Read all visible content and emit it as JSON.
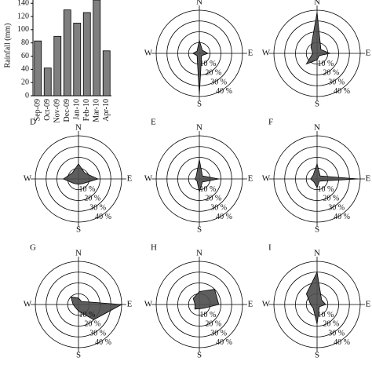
{
  "chart_data": [
    {
      "type": "bar",
      "ylabel": "Rainfall (mm)",
      "categories": [
        "Sep-09",
        "Oct-09",
        "Nov-09",
        "Dec-09",
        "Jan-10",
        "Feb-10",
        "Mar-10",
        "Apr-10"
      ],
      "values": [
        83,
        42,
        90,
        130,
        110,
        126,
        145,
        68
      ],
      "color": "#7f7f7f",
      "ylim": [
        0,
        145
      ],
      "yticks": [
        0,
        20,
        40,
        60,
        80,
        100,
        120,
        140
      ]
    },
    {
      "type": "radar",
      "categories": [
        "N",
        null,
        "E",
        null,
        "S",
        null,
        "W",
        null
      ],
      "values": [
        12,
        4,
        8,
        3,
        38,
        3,
        6,
        3
      ],
      "color": "#4d4d4d",
      "rlim": [
        0,
        40
      ],
      "rticks": [
        {
          "value": 10,
          "label": "10 %"
        },
        {
          "value": 20,
          "label": "20 %"
        },
        {
          "value": 30,
          "label": "30 %"
        },
        {
          "value": 40,
          "label": "40 %"
        }
      ]
    },
    {
      "type": "radar",
      "categories": [
        "N",
        null,
        "E",
        null,
        "S",
        null,
        "W",
        null
      ],
      "values": [
        38,
        5,
        12,
        3,
        6,
        14,
        4,
        8
      ],
      "color": "#4d4d4d",
      "rlim": [
        0,
        40
      ],
      "rticks": [
        {
          "value": 10,
          "label": "10 %"
        },
        {
          "value": 20,
          "label": "20 %"
        },
        {
          "value": 30,
          "label": "30 %"
        },
        {
          "value": 40,
          "label": "40 %"
        }
      ]
    },
    {
      "type": "radar",
      "label": "D",
      "categories": [
        "N",
        null,
        "E",
        null,
        "S",
        null,
        "W",
        null
      ],
      "values": [
        14,
        8,
        18,
        6,
        5,
        6,
        14,
        8
      ],
      "color": "#4d4d4d",
      "rlim": [
        0,
        40
      ],
      "rticks": [
        {
          "value": 10,
          "label": "10 %"
        },
        {
          "value": 20,
          "label": "20 %"
        },
        {
          "value": 30,
          "label": "30 %"
        },
        {
          "value": 40,
          "label": "40 %"
        }
      ]
    },
    {
      "type": "radar",
      "label": "E",
      "categories": [
        "N",
        null,
        "E",
        null,
        "S",
        null,
        "W",
        null
      ],
      "values": [
        18,
        4,
        18,
        4,
        12,
        3,
        4,
        4
      ],
      "color": "#4d4d4d",
      "rlim": [
        0,
        40
      ],
      "rticks": [
        {
          "value": 10,
          "label": "10 %"
        },
        {
          "value": 20,
          "label": "20 %"
        },
        {
          "value": 30,
          "label": "30 %"
        },
        {
          "value": 40,
          "label": "40 %"
        }
      ]
    },
    {
      "type": "radar",
      "label": "F",
      "categories": [
        "N",
        null,
        "E",
        null,
        "S",
        null,
        "W",
        null
      ],
      "values": [
        14,
        4,
        38,
        3,
        8,
        4,
        6,
        5
      ],
      "color": "#4d4d4d",
      "rlim": [
        0,
        40
      ],
      "rticks": [
        {
          "value": 10,
          "label": "10 %"
        },
        {
          "value": 20,
          "label": "20 %"
        },
        {
          "value": 30,
          "label": "30 %"
        },
        {
          "value": 40,
          "label": "40 %"
        }
      ]
    },
    {
      "type": "radar",
      "label": "G",
      "categories": [
        "N",
        null,
        "E",
        null,
        "S",
        null,
        "W",
        null
      ],
      "values": [
        6,
        4,
        40,
        20,
        6,
        4,
        5,
        10
      ],
      "color": "#4d4d4d",
      "rlim": [
        0,
        40
      ],
      "rticks": [
        {
          "value": 10,
          "label": "10 %"
        },
        {
          "value": 20,
          "label": "20 %"
        },
        {
          "value": 30,
          "label": "30 %"
        },
        {
          "value": 40,
          "label": "40 %"
        }
      ]
    },
    {
      "type": "radar",
      "label": "H",
      "categories": [
        "N",
        null,
        "E",
        null,
        "S",
        null,
        "W",
        null
      ],
      "values": [
        12,
        20,
        18,
        5,
        4,
        6,
        4,
        8
      ],
      "color": "#4d4d4d",
      "rlim": [
        0,
        40
      ],
      "rticks": [
        {
          "value": 10,
          "label": "10 %"
        },
        {
          "value": 20,
          "label": "20 %"
        },
        {
          "value": 30,
          "label": "30 %"
        },
        {
          "value": 40,
          "label": "40 %"
        }
      ]
    },
    {
      "type": "radar",
      "label": "I",
      "categories": [
        "N",
        null,
        "E",
        null,
        "S",
        null,
        "W",
        null
      ],
      "values": [
        30,
        6,
        8,
        3,
        18,
        5,
        6,
        14
      ],
      "color": "#4d4d4d",
      "rlim": [
        0,
        40
      ],
      "rticks": [
        {
          "value": 10,
          "label": "10 %"
        },
        {
          "value": 20,
          "label": "20 %"
        },
        {
          "value": 30,
          "label": "30 %"
        },
        {
          "value": 40,
          "label": "40 %"
        }
      ]
    }
  ]
}
